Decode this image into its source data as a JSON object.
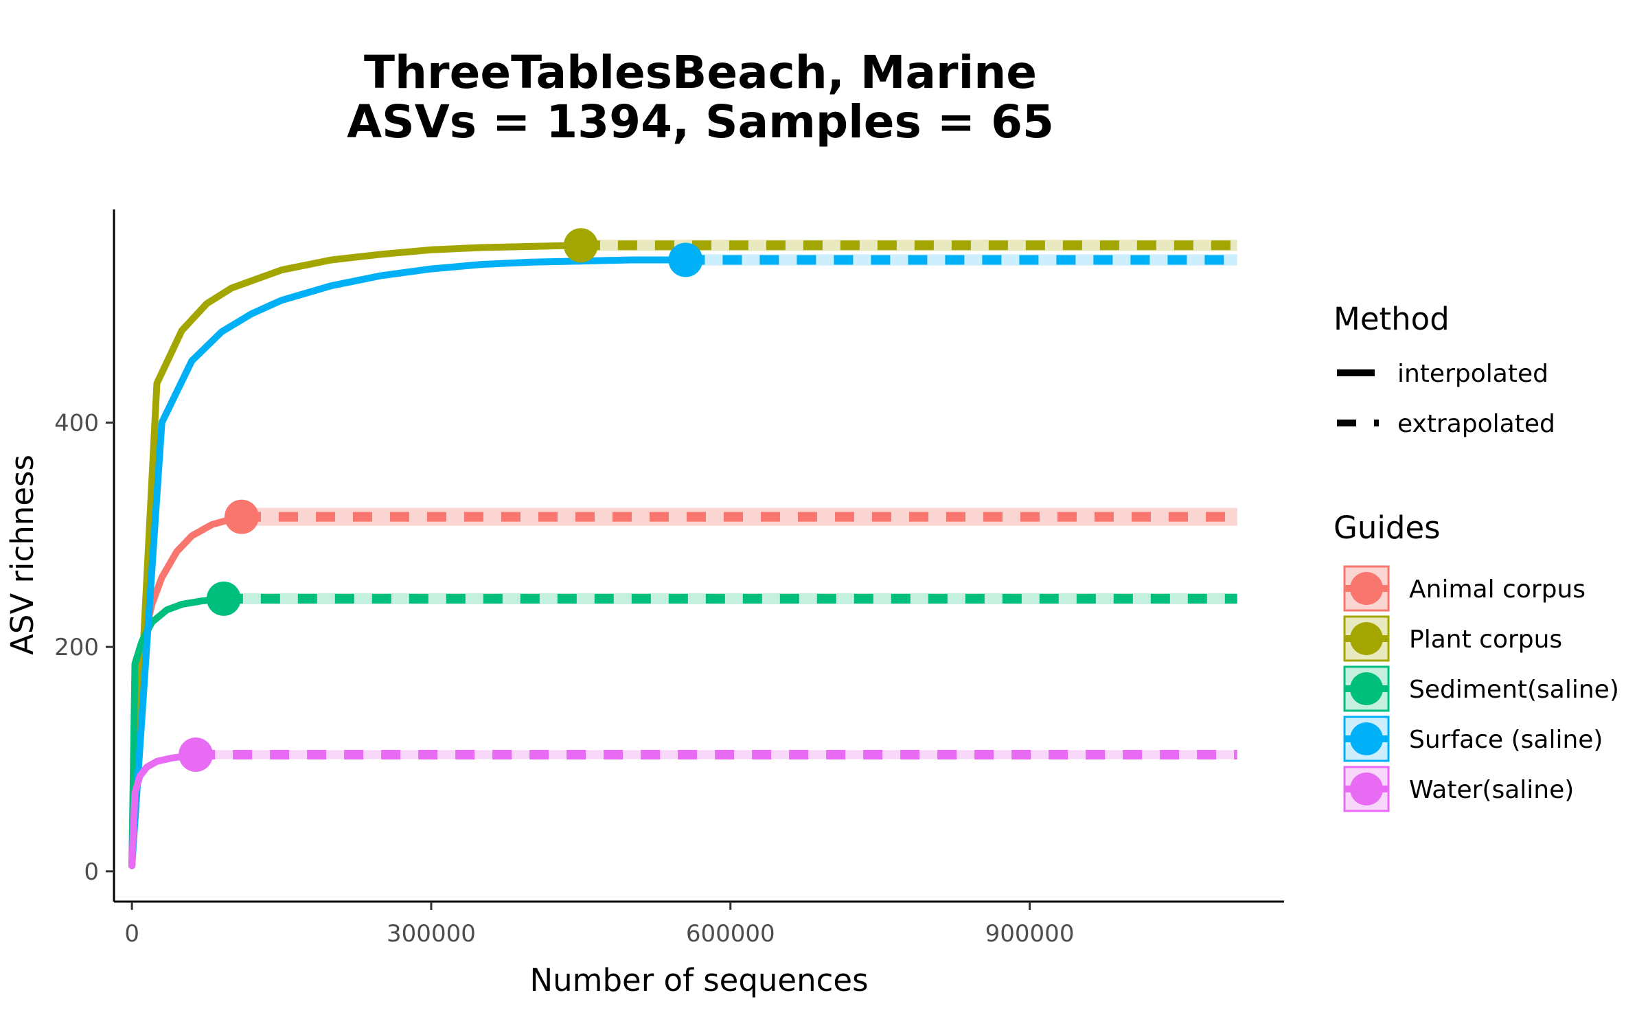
{
  "chart_data": {
    "type": "line",
    "title_line1": "ThreeTablesBeach, Marine",
    "title_line2": "ASVs = 1394, Samples = 65",
    "xlabel": "Number of sequences",
    "ylabel": "ASV richness",
    "xlim": [
      -18000,
      1155000
    ],
    "ylim": [
      -27,
      590
    ],
    "x_ticks": [
      0,
      300000,
      600000,
      900000
    ],
    "x_tick_labels": [
      "0",
      "300000",
      "600000",
      "900000"
    ],
    "y_ticks": [
      0,
      200,
      400
    ],
    "y_tick_labels": [
      "0",
      "200",
      "400"
    ],
    "extrapolate_to": 1108000,
    "grid": false,
    "legend_placement": "right",
    "legend": {
      "method_title": "Method",
      "method_items": [
        {
          "label": "interpolated",
          "style": "solid"
        },
        {
          "label": "extrapolated",
          "style": "dashed"
        }
      ],
      "guides_title": "Guides"
    },
    "series": [
      {
        "name": "Animal corpus",
        "color": "#F8766D",
        "fill": "#FBD5D2",
        "observed": [
          110000,
          316
        ],
        "interpolated": [
          [
            0,
            5
          ],
          [
            5000,
            140
          ],
          [
            10000,
            200
          ],
          [
            20000,
            238
          ],
          [
            30000,
            262
          ],
          [
            45000,
            285
          ],
          [
            60000,
            299
          ],
          [
            80000,
            309
          ],
          [
            100000,
            314
          ],
          [
            110000,
            316
          ]
        ],
        "extrapolated_value": 316,
        "band": [
          308,
          324
        ]
      },
      {
        "name": "Plant corpus",
        "color": "#A3A500",
        "fill": "#E9E9C0",
        "observed": [
          450000,
          558
        ],
        "interpolated": [
          [
            0,
            5
          ],
          [
            25000,
            435
          ],
          [
            50000,
            482
          ],
          [
            75000,
            506
          ],
          [
            100000,
            520
          ],
          [
            150000,
            536
          ],
          [
            200000,
            545
          ],
          [
            250000,
            550
          ],
          [
            300000,
            554
          ],
          [
            350000,
            556
          ],
          [
            400000,
            557
          ],
          [
            450000,
            558
          ]
        ],
        "extrapolated_value": 558,
        "band": [
          553,
          563
        ]
      },
      {
        "name": "Sediment(saline)",
        "color": "#00BF7D",
        "fill": "#C5EFDF",
        "observed": [
          92000,
          243
        ],
        "interpolated": [
          [
            0,
            5
          ],
          [
            3000,
            185
          ],
          [
            10000,
            205
          ],
          [
            20000,
            222
          ],
          [
            35000,
            233
          ],
          [
            50000,
            238
          ],
          [
            70000,
            241
          ],
          [
            92000,
            243
          ]
        ],
        "extrapolated_value": 243,
        "band": [
          238,
          248
        ]
      },
      {
        "name": "Surface (saline)",
        "color": "#00B0F6",
        "fill": "#CDEEFC",
        "observed": [
          555000,
          545
        ],
        "interpolated": [
          [
            0,
            5
          ],
          [
            30000,
            400
          ],
          [
            60000,
            455
          ],
          [
            90000,
            481
          ],
          [
            120000,
            497
          ],
          [
            150000,
            509
          ],
          [
            200000,
            522
          ],
          [
            250000,
            531
          ],
          [
            300000,
            537
          ],
          [
            350000,
            541
          ],
          [
            400000,
            543
          ],
          [
            450000,
            544
          ],
          [
            500000,
            545
          ],
          [
            555000,
            545
          ]
        ],
        "extrapolated_value": 545,
        "band": [
          540,
          550
        ]
      },
      {
        "name": "Water(saline)",
        "color": "#E76BF3",
        "fill": "#F8D7FB",
        "observed": [
          64000,
          104
        ],
        "interpolated": [
          [
            0,
            5
          ],
          [
            3000,
            70
          ],
          [
            8000,
            85
          ],
          [
            15000,
            93
          ],
          [
            25000,
            98
          ],
          [
            40000,
            101
          ],
          [
            64000,
            104
          ]
        ],
        "extrapolated_value": 104,
        "band": [
          100,
          108
        ]
      }
    ]
  }
}
